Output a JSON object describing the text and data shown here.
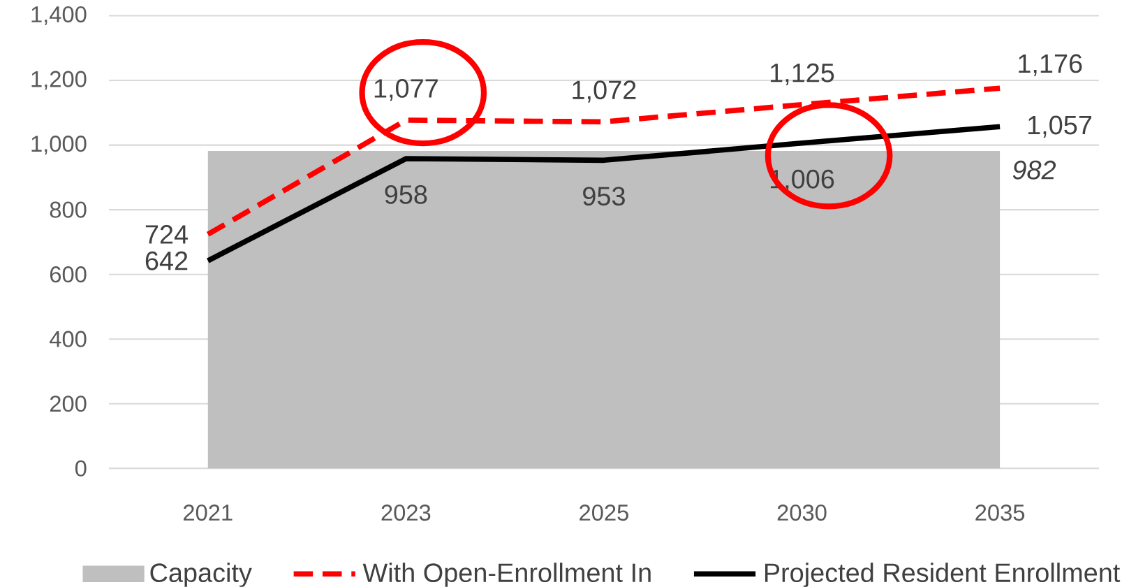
{
  "chart_data": {
    "type": "line",
    "categories": [
      "2021",
      "2023",
      "2025",
      "2030",
      "2035"
    ],
    "series": [
      {
        "name": "Capacity",
        "type": "area",
        "color": "#bfbfbf",
        "values": [
          982,
          982,
          982,
          982,
          982
        ],
        "value_labels": [
          null,
          null,
          null,
          null,
          "982"
        ]
      },
      {
        "name": "With Open-Enrollment In",
        "color": "#ff0000",
        "line_style": "dashed",
        "values": [
          724,
          1077,
          1072,
          1125,
          1176
        ],
        "value_labels": [
          "724",
          "1,077",
          "1,072",
          "1,125",
          "1,176"
        ]
      },
      {
        "name": "Projected Resident Enrollment",
        "color": "#000000",
        "line_style": "solid",
        "values": [
          642,
          958,
          953,
          1006,
          1057
        ],
        "value_labels": [
          "642",
          "958",
          "953",
          "1,006",
          "1,057"
        ]
      }
    ],
    "ylim": [
      0,
      1400
    ],
    "yticks": [
      0,
      200,
      400,
      600,
      800,
      {
        "value": 1000,
        "label": "1,000"
      },
      {
        "value": 1200,
        "label": "1,200"
      },
      {
        "value": 1400,
        "label": "1,400"
      }
    ],
    "grid": "y",
    "legend": "bottom"
  }
}
